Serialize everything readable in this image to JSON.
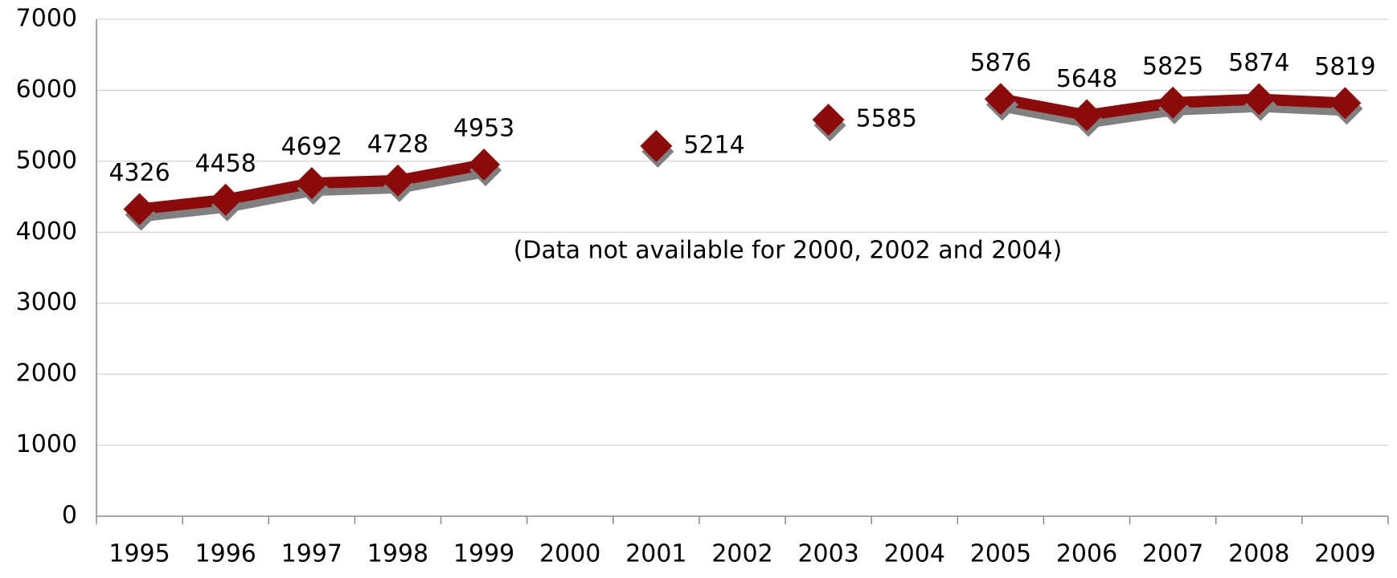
{
  "chart_data": {
    "type": "line",
    "annotation": "(Data not available for 2000, 2002 and 2004)",
    "categories": [
      "1995",
      "1996",
      "1997",
      "1998",
      "1999",
      "2000",
      "2001",
      "2002",
      "2003",
      "2004",
      "2005",
      "2006",
      "2007",
      "2008",
      "2009"
    ],
    "series": [
      {
        "color": "#8b0a0a",
        "values": [
          4326,
          4458,
          4692,
          4728,
          4953,
          null,
          5214,
          null,
          5585,
          null,
          5876,
          5648,
          5825,
          5874,
          5819
        ]
      }
    ],
    "ylim": [
      0,
      7000
    ],
    "yticks": [
      0,
      1000,
      2000,
      3000,
      4000,
      5000,
      6000,
      7000
    ],
    "grid": true
  }
}
